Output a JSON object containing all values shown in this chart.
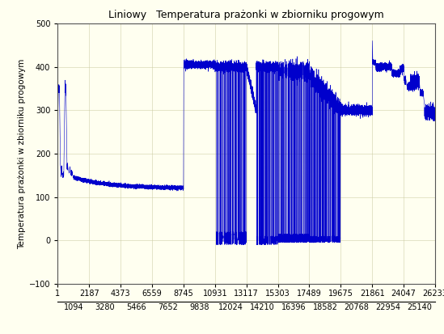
{
  "title": "Liniowy   Temperatura prażonki w zbiorniku progowym",
  "ylabel": "Temperatura prażonki w zbiorniku progowym",
  "xlabel": "",
  "xlim": [
    1,
    26233
  ],
  "ylim": [
    -100,
    500
  ],
  "yticks": [
    -100,
    0,
    100,
    200,
    300,
    400,
    500
  ],
  "xticks_top": [
    1,
    2187,
    4373,
    6559,
    8745,
    10931,
    13117,
    15303,
    17489,
    19675,
    21861,
    24047,
    26233
  ],
  "xticks_bottom": [
    1094,
    3280,
    5466,
    7652,
    9838,
    12024,
    14210,
    16396,
    18582,
    20768,
    22954,
    25140
  ],
  "line_color": "#0000cc",
  "bg_color": "#fffff0",
  "plot_bg_color": "#fffff0",
  "grid_color": "#c8c8a0",
  "title_fontsize": 9,
  "axis_label_fontsize": 7.5,
  "tick_fontsize": 7
}
